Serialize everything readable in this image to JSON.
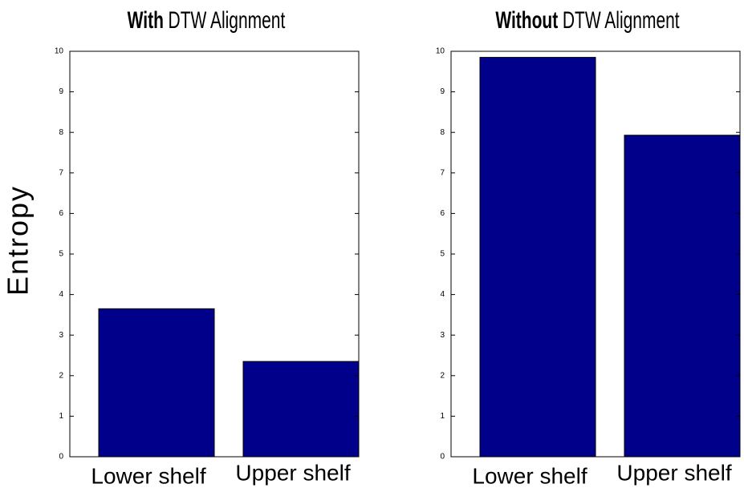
{
  "chart_data": [
    {
      "type": "bar",
      "title": [
        {
          "text": "With",
          "bold": true
        },
        {
          "text": "DTW Alignment",
          "bold": false
        }
      ],
      "ylabel": "Entropy",
      "categories": [
        "Lower shelf",
        "Upper shelf"
      ],
      "values": [
        3.65,
        2.35
      ],
      "color": "#00008b",
      "ylim": [
        0,
        10
      ],
      "yticks": [
        0,
        1,
        2,
        3,
        4,
        5,
        6,
        7,
        8,
        9,
        10
      ],
      "grid": false
    },
    {
      "type": "bar",
      "title": [
        {
          "text": "Without",
          "bold": true
        },
        {
          "text": "DTW Alignment",
          "bold": false
        }
      ],
      "categories": [
        "Lower shelf",
        "Upper shelf"
      ],
      "values": [
        9.85,
        7.93
      ],
      "color": "#00008b",
      "ylim": [
        0,
        10
      ],
      "yticks": [
        0,
        1,
        2,
        3,
        4,
        5,
        6,
        7,
        8,
        9,
        10
      ],
      "grid": false
    }
  ]
}
